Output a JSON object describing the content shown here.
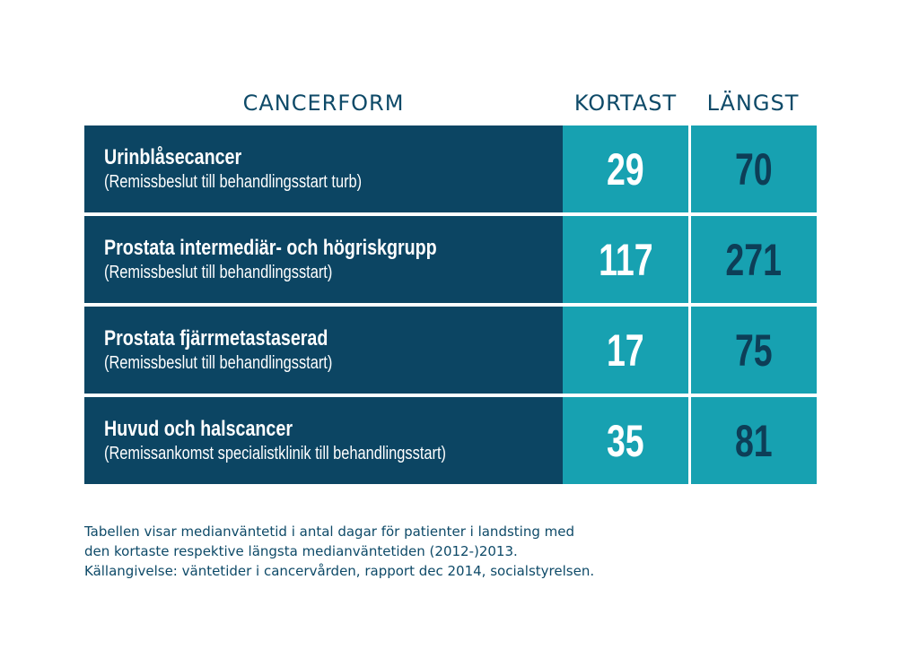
{
  "chart_data": {
    "type": "table",
    "columns": [
      "CANCERFORM",
      "KORTAST",
      "LÄNGST"
    ],
    "rows": [
      {
        "title": "Urinblåsecancer",
        "subtitle": "(Remissbeslut till behandlingsstart turb)",
        "kortast": "29",
        "langst": "70"
      },
      {
        "title": "Prostata intermediär- och högriskgrupp",
        "subtitle": "(Remissbeslut till behandlingsstart)",
        "kortast": "117",
        "langst": "271"
      },
      {
        "title": "Prostata fjärrmetastaserad",
        "subtitle": "(Remissbeslut till behandlingsstart)",
        "kortast": "17",
        "langst": "75"
      },
      {
        "title": "Huvud och halscancer",
        "subtitle": "(Remissankomst specialistklinik till behandlingsstart)",
        "kortast": "35",
        "langst": "81"
      }
    ],
    "footnote": [
      "Tabellen visar medianväntetid i antal dagar för patienter i landsting med",
      "den kortaste respektive längsta medianväntetiden (2012-)2013.",
      "Källangivelse: väntetider i cancervården, rapport dec 2014, socialstyrelsen."
    ]
  },
  "colors": {
    "label_bg": "#0c4563",
    "number_bg": "#17a1b1",
    "header_text": "#0e4a68",
    "langst_text": "#0d3e57"
  }
}
